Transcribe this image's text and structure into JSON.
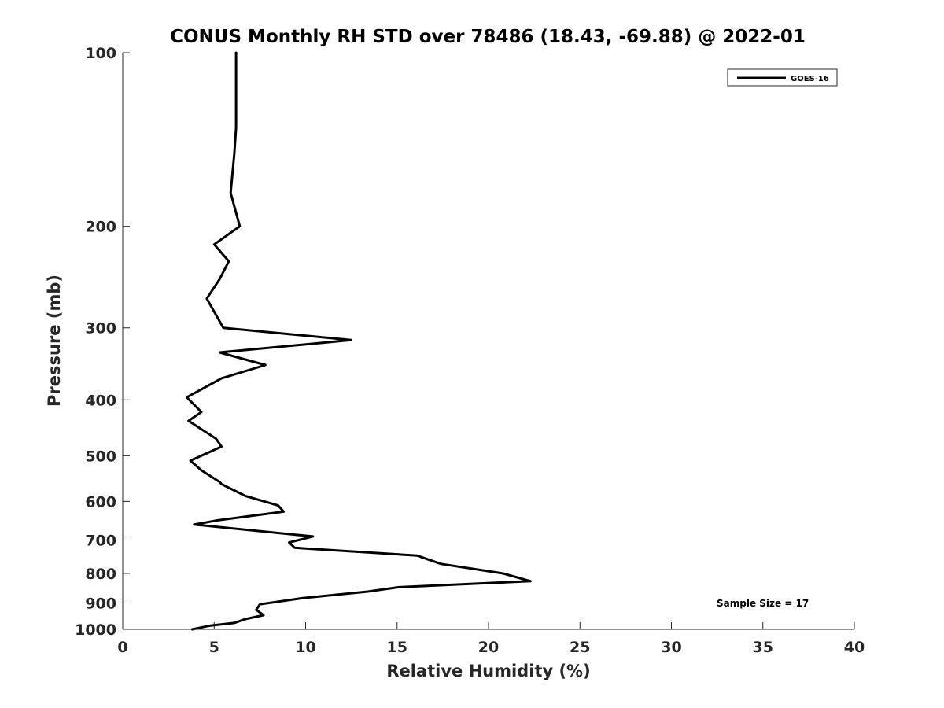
{
  "chart_data": {
    "type": "line",
    "title": "CONUS Monthly RH STD over 78486 (18.43, -69.88) @ 2022-01",
    "xlabel": "Relative Humidity (%)",
    "ylabel": "Pressure (mb)",
    "xlim": [
      0,
      40
    ],
    "ylim": [
      100,
      1000
    ],
    "y_scale": "log",
    "y_reversed": true,
    "x_ticks": [
      0,
      5,
      10,
      15,
      20,
      25,
      30,
      35,
      40
    ],
    "x_tick_labels": [
      "0",
      "5",
      "10",
      "15",
      "20",
      "25",
      "30",
      "35",
      "40"
    ],
    "y_ticks": [
      100,
      200,
      300,
      400,
      500,
      600,
      700,
      800,
      900,
      1000
    ],
    "y_tick_labels": [
      "100",
      "200",
      "300",
      "400",
      "500",
      "600",
      "700",
      "800",
      "900",
      "1000"
    ],
    "grid": false,
    "legend_position": "top-right",
    "annotation": "Sample Size = 17",
    "series": [
      {
        "name": "GOES-16",
        "color": "#000000",
        "points": [
          [
            6.2,
            100
          ],
          [
            6.2,
            107
          ],
          [
            6.2,
            115
          ],
          [
            6.2,
            125
          ],
          [
            6.2,
            135
          ],
          [
            6.1,
            150
          ],
          [
            5.9,
            175
          ],
          [
            6.4,
            200
          ],
          [
            5.0,
            215
          ],
          [
            5.8,
            230
          ],
          [
            5.3,
            247
          ],
          [
            4.6,
            267
          ],
          [
            5.5,
            300
          ],
          [
            12.5,
            315
          ],
          [
            5.3,
            331
          ],
          [
            7.8,
            348
          ],
          [
            5.4,
            367
          ],
          [
            3.5,
            396
          ],
          [
            4.3,
            420
          ],
          [
            3.6,
            435
          ],
          [
            5.1,
            467
          ],
          [
            5.4,
            482
          ],
          [
            3.7,
            510
          ],
          [
            4.3,
            530
          ],
          [
            5.3,
            555
          ],
          [
            5.4,
            560
          ],
          [
            6.7,
            587
          ],
          [
            8.5,
            610
          ],
          [
            8.8,
            625
          ],
          [
            5.2,
            647
          ],
          [
            3.9,
            658
          ],
          [
            10.4,
            690
          ],
          [
            9.1,
            707
          ],
          [
            9.4,
            722
          ],
          [
            16.1,
            745
          ],
          [
            17.4,
            770
          ],
          [
            20.8,
            800
          ],
          [
            22.3,
            825
          ],
          [
            15.1,
            845
          ],
          [
            13.4,
            860
          ],
          [
            9.8,
            883
          ],
          [
            7.5,
            905
          ],
          [
            7.3,
            925
          ],
          [
            7.7,
            945
          ],
          [
            6.7,
            960
          ],
          [
            6.1,
            975
          ],
          [
            4.8,
            985
          ],
          [
            3.8,
            1000
          ]
        ]
      }
    ]
  }
}
